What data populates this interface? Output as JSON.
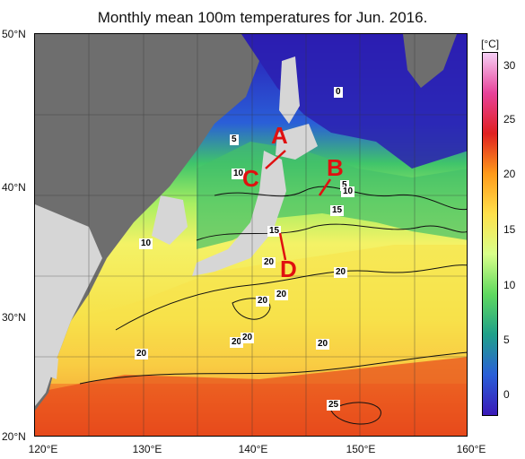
{
  "title": "Monthly mean 100m temperatures for Jun. 2016.",
  "lat_labels": [
    "50°N",
    "40°N",
    "30°N",
    "20°N"
  ],
  "lon_labels": [
    "120°E",
    "130°E",
    "140°E",
    "150°E",
    "160°E"
  ],
  "colorbar": {
    "unit": "[°C]",
    "ticks": [
      "30",
      "25",
      "20",
      "15",
      "10",
      "5",
      "0"
    ],
    "colors": [
      "#f6d0f6",
      "#e8429a",
      "#e02020",
      "#ff9a1a",
      "#ffe04a",
      "#d8ff8a",
      "#5fd95f",
      "#1fa08a",
      "#2a5fd8",
      "#3a1ab8"
    ]
  },
  "contour_labels": [
    "0",
    "5",
    "5",
    "10",
    "10",
    "10",
    "15",
    "15",
    "20",
    "20",
    "20",
    "20",
    "20",
    "20",
    "20",
    "20",
    "25"
  ],
  "section_markers": [
    "A",
    "B",
    "C",
    "D"
  ],
  "colors": {
    "land": "#6e6e6e",
    "land_light": "#d6d6d6",
    "cold_water": "#2c1fb0",
    "warm_water": "#f7e84a",
    "hot_water": "#e8381a",
    "marker": "#e01010"
  }
}
